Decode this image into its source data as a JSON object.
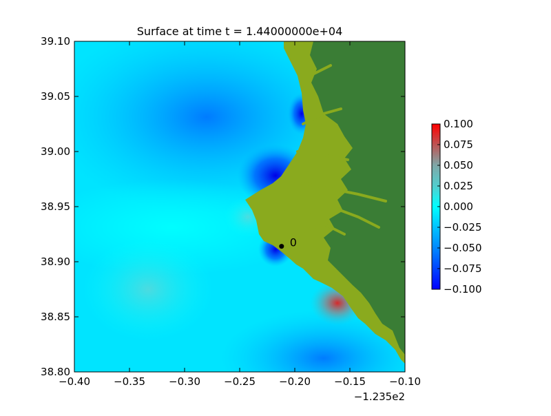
{
  "chart_data": {
    "type": "heatmap",
    "title": "Surface at time t = 1.44000000e+04",
    "xlabel": "",
    "ylabel": "",
    "xlim": [
      -0.4,
      -0.1
    ],
    "ylim": [
      38.8,
      39.1
    ],
    "x_ticks": [
      "−0.40",
      "−0.35",
      "−0.30",
      "−0.25",
      "−0.20",
      "−0.15",
      "−0.10"
    ],
    "x_tick_values": [
      -0.4,
      -0.35,
      -0.3,
      -0.25,
      -0.2,
      -0.15,
      -0.1
    ],
    "x_offset_label": "−1.235e2",
    "y_ticks": [
      "38.80",
      "38.85",
      "38.90",
      "38.95",
      "39.00",
      "39.05",
      "39.10"
    ],
    "y_tick_values": [
      38.8,
      38.85,
      38.9,
      38.95,
      39.0,
      39.05,
      39.1
    ],
    "colorbar": {
      "range": [
        -0.1,
        0.1
      ],
      "ticks": [
        "−0.100",
        "−0.075",
        "−0.050",
        "−0.025",
        "0.000",
        "0.025",
        "0.050",
        "0.075",
        "0.100"
      ],
      "tick_values": [
        -0.1,
        -0.075,
        -0.05,
        -0.025,
        0.0,
        0.025,
        0.05,
        0.075,
        0.1
      ],
      "colors": [
        "#0000ff",
        "#00c8ff",
        "#00ffff",
        "#7fbfbf",
        "#ff0000"
      ]
    },
    "gauge": {
      "label": "0",
      "x": -0.212,
      "y": 38.914
    },
    "colors": {
      "land_dark": "#3a7d35",
      "land_light": "#8aaa1e",
      "ocean_base": "#00f0ff"
    },
    "grid": false,
    "legend": "none"
  }
}
